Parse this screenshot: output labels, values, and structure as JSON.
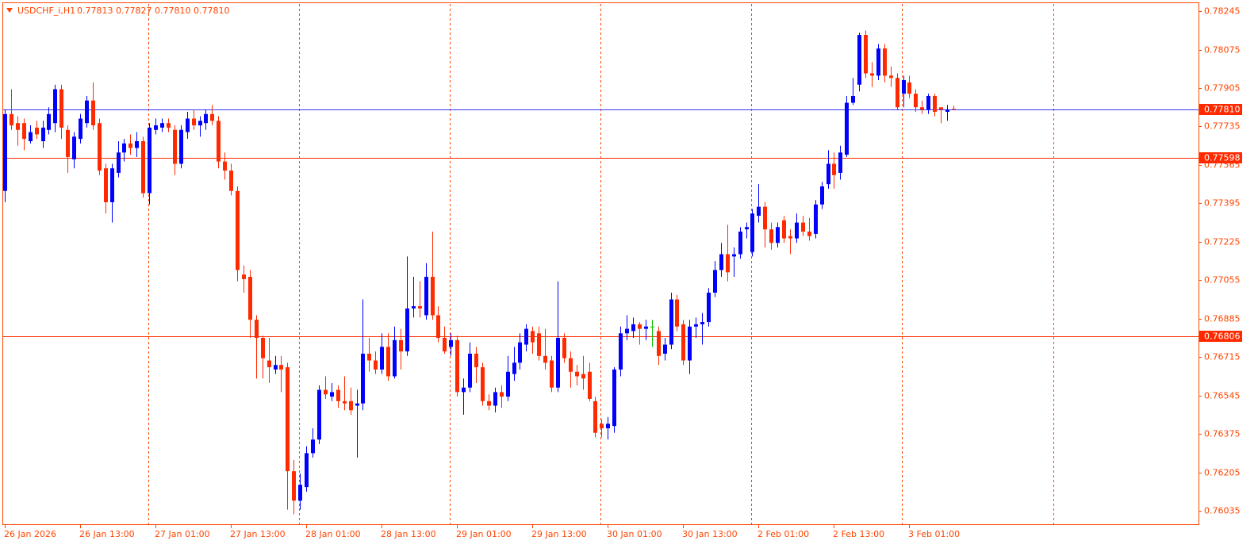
{
  "chart_data": {
    "type": "candlestick",
    "symbol": "USDCHF_i,H1",
    "info": "0.77813 0.77827 0.77810 0.77810",
    "up_color": "#0000ff",
    "down_color": "#ff2a00",
    "doji_color": "#00c000",
    "grid": true,
    "ylim": [
      0.75972,
      0.78277
    ],
    "yticks": [
      0.78245,
      0.78075,
      0.77905,
      0.77735,
      0.77565,
      0.77395,
      0.77225,
      0.77055,
      0.76885,
      0.76715,
      0.76545,
      0.76375,
      0.76205,
      0.76035
    ],
    "levels": [
      {
        "value": 0.7781,
        "label": "0.77810",
        "color": "#3333ff",
        "box_color": "#ff2a00"
      },
      {
        "value": 0.77598,
        "label": "0.77598",
        "color": "#ff2a00",
        "box_color": "#ff2a00"
      },
      {
        "value": 0.76806,
        "label": "0.76806",
        "color": "#ff2a00",
        "box_color": "#ff2a00"
      }
    ],
    "categories": [
      "26 Jan 2026",
      null,
      null,
      null,
      null,
      null,
      null,
      null,
      null,
      null,
      null,
      null,
      "26 Jan 13:00",
      null,
      null,
      null,
      null,
      null,
      null,
      null,
      null,
      null,
      null,
      null,
      "27 Jan 01:00",
      null,
      null,
      null,
      null,
      null,
      null,
      null,
      null,
      null,
      null,
      null,
      "27 Jan 13:00",
      null,
      null,
      null,
      null,
      null,
      null,
      null,
      null,
      null,
      null,
      null,
      "28 Jan 01:00",
      null,
      null,
      null,
      null,
      null,
      null,
      null,
      null,
      null,
      null,
      null,
      "28 Jan 13:00",
      null,
      null,
      null,
      null,
      null,
      null,
      null,
      null,
      null,
      null,
      null,
      "29 Jan 01:00",
      null,
      null,
      null,
      null,
      null,
      null,
      null,
      null,
      null,
      null,
      null,
      "29 Jan 13:00",
      null,
      null,
      null,
      null,
      null,
      null,
      null,
      null,
      null,
      null,
      null,
      "30 Jan 01:00",
      null,
      null,
      null,
      null,
      null,
      null,
      null,
      null,
      null,
      null,
      null,
      "30 Jan 13:00",
      null,
      null,
      null,
      null,
      null,
      null,
      null,
      null,
      null,
      null,
      null,
      "2 Feb 01:00",
      null,
      null,
      null,
      null,
      null,
      null,
      null,
      null,
      null,
      null,
      null,
      "2 Feb 13:00",
      null,
      null,
      null,
      null,
      null,
      null,
      null,
      null,
      null,
      null,
      null,
      "3 Feb 01:00",
      null,
      null,
      null,
      null,
      null,
      null,
      null
    ],
    "open": [
      0.7745,
      0.7779,
      0.7775,
      0.7775,
      0.7767,
      0.7773,
      0.7767,
      0.7772,
      0.7775,
      0.779,
      0.7772,
      0.7759,
      0.7768,
      0.7775,
      0.7785,
      0.7775,
      0.7755,
      0.774,
      0.7753,
      0.7762,
      0.7766,
      0.7764,
      0.7767,
      0.7744,
      0.7772,
      0.7773,
      0.7775,
      0.7772,
      0.7757,
      0.7771,
      0.7777,
      0.7774,
      0.7775,
      0.7779,
      0.7776,
      0.7758,
      0.7754,
      0.7745,
      0.7708,
      0.7707,
      0.7688,
      0.768,
      0.767,
      0.7666,
      0.7668,
      0.7667,
      0.7621,
      0.7608,
      0.7614,
      0.7629,
      0.7635,
      0.7657,
      0.7654,
      0.7657,
      0.7652,
      0.7652,
      0.765,
      0.7651,
      0.7673,
      0.767,
      0.7666,
      0.7676,
      0.7663,
      0.7679,
      0.7674,
      0.7693,
      0.7694,
      0.769,
      0.7707,
      0.769,
      0.768,
      0.7676,
      0.7679,
      0.7656,
      0.7658,
      0.7673,
      0.7667,
      0.7652,
      0.765,
      0.7656,
      0.7654,
      0.7664,
      0.7669,
      0.7677,
      0.7683,
      0.7682,
      0.7672,
      0.767,
      0.7658,
      0.768,
      0.7671,
      0.7665,
      0.7664,
      0.7665,
      0.7652,
      0.7642,
      0.764,
      0.7641,
      0.7666,
      0.7682,
      0.7683,
      0.7686,
      0.7684,
      0.7685,
      0.7683,
      0.7673,
      0.7677,
      0.7697,
      0.7686,
      0.767,
      0.7685,
      0.7686,
      0.7687,
      0.77,
      0.771,
      0.7717,
      0.7716,
      0.7717,
      0.7728,
      0.7718,
      0.7734,
      0.7738,
      0.7728,
      0.7722,
      0.7732,
      0.7725,
      0.7724,
      0.7731,
      0.7727,
      0.7726,
      0.7739,
      0.7748,
      0.7757,
      0.7753,
      0.7761,
      0.7784,
      0.7792,
      0.7814,
      0.7797,
      0.7796,
      0.7808,
      0.7796,
      0.7795,
      0.7788,
      0.7793,
      0.7788,
      0.7782,
      0.7781,
      0.7787,
      0.7782,
      0.778,
      0.77813
    ],
    "high": [
      0.7781,
      0.779,
      0.7778,
      0.7777,
      0.7774,
      0.7776,
      0.7776,
      0.7782,
      0.7792,
      0.7792,
      0.7774,
      0.7771,
      0.7779,
      0.7787,
      0.7793,
      0.7777,
      0.7757,
      0.7757,
      0.7767,
      0.7768,
      0.777,
      0.7771,
      0.7769,
      0.7775,
      0.7777,
      0.7777,
      0.7777,
      0.7774,
      0.7774,
      0.778,
      0.7781,
      0.7778,
      0.7781,
      0.7783,
      0.7778,
      0.7762,
      0.7757,
      0.7747,
      0.7712,
      0.771,
      0.769,
      0.7681,
      0.768,
      0.7672,
      0.7672,
      0.7669,
      0.7626,
      0.762,
      0.7632,
      0.764,
      0.7659,
      0.7663,
      0.766,
      0.7659,
      0.7663,
      0.7658,
      0.7657,
      0.7697,
      0.768,
      0.7674,
      0.7682,
      0.7682,
      0.7685,
      0.7684,
      0.7716,
      0.7707,
      0.7705,
      0.7713,
      0.7727,
      0.7694,
      0.7685,
      0.7682,
      0.7681,
      0.7662,
      0.7678,
      0.7676,
      0.7669,
      0.7655,
      0.7658,
      0.7659,
      0.7672,
      0.7676,
      0.7682,
      0.7686,
      0.7685,
      0.7685,
      0.7684,
      0.7672,
      0.7705,
      0.7682,
      0.7674,
      0.7668,
      0.7672,
      0.7669,
      0.7654,
      0.7644,
      0.7645,
      0.7667,
      0.7685,
      0.769,
      0.7689,
      0.7687,
      0.7688,
      0.7688,
      0.7685,
      0.768,
      0.77,
      0.7699,
      0.7688,
      0.7688,
      0.7689,
      0.7691,
      0.7702,
      0.7714,
      0.7722,
      0.773,
      0.772,
      0.7729,
      0.7731,
      0.7737,
      0.7748,
      0.774,
      0.7731,
      0.7731,
      0.7734,
      0.7728,
      0.7735,
      0.7734,
      0.7733,
      0.7741,
      0.7749,
      0.7763,
      0.7762,
      0.7765,
      0.7787,
      0.7795,
      0.7815,
      0.7816,
      0.7802,
      0.781,
      0.781,
      0.78,
      0.7797,
      0.7796,
      0.7796,
      0.779,
      0.7785,
      0.7788,
      0.7788,
      0.7782,
      0.7783,
      0.77827
    ],
    "low": [
      0.774,
      0.7772,
      0.7765,
      0.7763,
      0.7766,
      0.7768,
      0.7764,
      0.777,
      0.7771,
      0.7768,
      0.7753,
      0.7755,
      0.7766,
      0.7773,
      0.7772,
      0.7752,
      0.7735,
      0.7731,
      0.7751,
      0.7758,
      0.7761,
      0.776,
      0.7742,
      0.7739,
      0.777,
      0.7771,
      0.7771,
      0.7752,
      0.7755,
      0.7768,
      0.7772,
      0.7769,
      0.7772,
      0.7774,
      0.7755,
      0.775,
      0.7743,
      0.7705,
      0.77,
      0.768,
      0.7662,
      0.7662,
      0.766,
      0.7664,
      0.7656,
      0.7604,
      0.7602,
      0.7604,
      0.7612,
      0.7627,
      0.7633,
      0.7653,
      0.7652,
      0.7649,
      0.7648,
      0.7646,
      0.7627,
      0.7648,
      0.7665,
      0.7664,
      0.7664,
      0.7661,
      0.7662,
      0.7666,
      0.7672,
      0.7689,
      0.7689,
      0.7688,
      0.7688,
      0.7678,
      0.7673,
      0.7672,
      0.7654,
      0.7646,
      0.7656,
      0.766,
      0.765,
      0.7648,
      0.7647,
      0.7649,
      0.7652,
      0.7661,
      0.7666,
      0.7674,
      0.7673,
      0.767,
      0.7666,
      0.7656,
      0.7656,
      0.7669,
      0.7658,
      0.7659,
      0.7657,
      0.7652,
      0.7636,
      0.7636,
      0.7635,
      0.7638,
      0.7663,
      0.7679,
      0.768,
      0.7677,
      0.7679,
      0.7676,
      0.7668,
      0.767,
      0.7675,
      0.7683,
      0.7668,
      0.7664,
      0.768,
      0.7677,
      0.7685,
      0.7698,
      0.7707,
      0.7705,
      0.7707,
      0.7715,
      0.7724,
      0.7716,
      0.7731,
      0.772,
      0.7719,
      0.772,
      0.7722,
      0.7717,
      0.7722,
      0.7725,
      0.7723,
      0.7724,
      0.7737,
      0.7746,
      0.7746,
      0.775,
      0.776,
      0.7783,
      0.7789,
      0.7795,
      0.7791,
      0.7794,
      0.7793,
      0.7791,
      0.7781,
      0.7782,
      0.7786,
      0.778,
      0.7779,
      0.7779,
      0.7778,
      0.7775,
      0.7776,
      0.7781
    ],
    "close": [
      0.7779,
      0.7774,
      0.7772,
      0.7768,
      0.7771,
      0.777,
      0.7773,
      0.7779,
      0.779,
      0.7773,
      0.776,
      0.7769,
      0.7777,
      0.7785,
      0.7774,
      0.7754,
      0.774,
      0.7755,
      0.7762,
      0.7766,
      0.7764,
      0.7767,
      0.7744,
      0.7773,
      0.7774,
      0.7775,
      0.7773,
      0.7757,
      0.7772,
      0.7777,
      0.7774,
      0.7776,
      0.7779,
      0.7776,
      0.7758,
      0.7754,
      0.7745,
      0.771,
      0.7706,
      0.7688,
      0.768,
      0.7671,
      0.7667,
      0.7668,
      0.7666,
      0.7621,
      0.7608,
      0.7615,
      0.7629,
      0.7635,
      0.7657,
      0.7655,
      0.7656,
      0.7652,
      0.7651,
      0.7648,
      0.7651,
      0.7673,
      0.767,
      0.7666,
      0.7676,
      0.7663,
      0.7679,
      0.7674,
      0.7693,
      0.7694,
      0.7693,
      0.7707,
      0.769,
      0.768,
      0.7674,
      0.7679,
      0.7656,
      0.7658,
      0.7673,
      0.7667,
      0.7652,
      0.765,
      0.7656,
      0.7654,
      0.7665,
      0.7669,
      0.7678,
      0.7684,
      0.7678,
      0.7672,
      0.7669,
      0.7658,
      0.768,
      0.7671,
      0.7665,
      0.7663,
      0.7662,
      0.7653,
      0.7638,
      0.764,
      0.7642,
      0.7666,
      0.7682,
      0.7684,
      0.7686,
      0.7684,
      0.7685,
      0.7685,
      0.7672,
      0.7677,
      0.7697,
      0.7685,
      0.767,
      0.7685,
      0.7686,
      0.7687,
      0.77,
      0.771,
      0.7717,
      0.7709,
      0.7717,
      0.7727,
      0.7729,
      0.7735,
      0.7738,
      0.7728,
      0.7722,
      0.7729,
      0.7724,
      0.7724,
      0.7731,
      0.7727,
      0.7725,
      0.7739,
      0.7747,
      0.7757,
      0.7752,
      0.7762,
      0.7784,
      0.7787,
      0.7814,
      0.7797,
      0.7796,
      0.7808,
      0.7796,
      0.7795,
      0.7782,
      0.7794,
      0.7788,
      0.7782,
      0.7781,
      0.7787,
      0.778,
      0.7781,
      0.7781,
      0.7781
    ]
  }
}
